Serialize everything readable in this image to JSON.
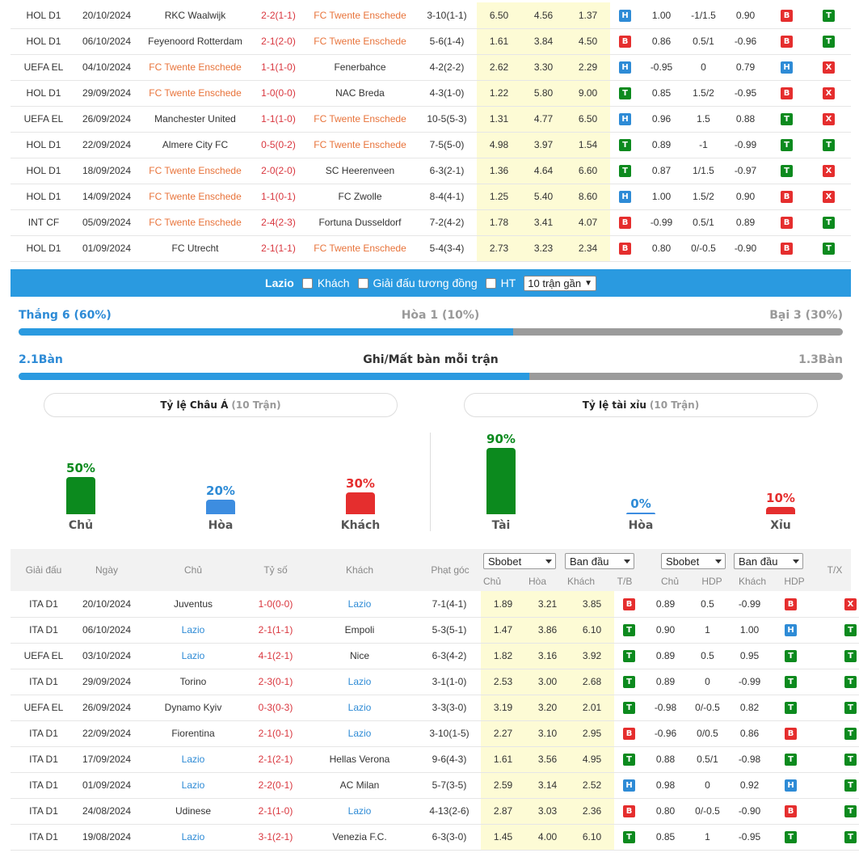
{
  "top_table": [
    {
      "league": "HOL D1",
      "date": "20/10/2024",
      "home": "RKC Waalwijk",
      "home_hl": false,
      "score": "2-2(1-1)",
      "away": "FC Twente Enschede",
      "away_hl": true,
      "corner": "3-10(1-1)",
      "o1": "6.50",
      "o2": "4.56",
      "o3": "1.37",
      "r1": "H",
      "h1": "1.00",
      "h2": "-1/1.5",
      "h3": "0.90",
      "r2": "B",
      "r3": "T"
    },
    {
      "league": "HOL D1",
      "date": "06/10/2024",
      "home": "Feyenoord Rotterdam",
      "home_hl": false,
      "score": "2-1(2-0)",
      "away": "FC Twente Enschede",
      "away_hl": true,
      "corner": "5-6(1-4)",
      "o1": "1.61",
      "o2": "3.84",
      "o3": "4.50",
      "r1": "B",
      "h1": "0.86",
      "h2": "0.5/1",
      "h3": "-0.96",
      "r2": "B",
      "r3": "T"
    },
    {
      "league": "UEFA EL",
      "date": "04/10/2024",
      "home": "FC Twente Enschede",
      "home_hl": true,
      "score": "1-1(1-0)",
      "away": "Fenerbahce",
      "away_hl": false,
      "corner": "4-2(2-2)",
      "o1": "2.62",
      "o2": "3.30",
      "o3": "2.29",
      "r1": "H",
      "h1": "-0.95",
      "h2": "0",
      "h3": "0.79",
      "r2": "H",
      "r3": "X"
    },
    {
      "league": "HOL D1",
      "date": "29/09/2024",
      "home": "FC Twente Enschede",
      "home_hl": true,
      "score": "1-0(0-0)",
      "away": "NAC Breda",
      "away_hl": false,
      "corner": "4-3(1-0)",
      "o1": "1.22",
      "o2": "5.80",
      "o3": "9.00",
      "r1": "T",
      "h1": "0.85",
      "h2": "1.5/2",
      "h3": "-0.95",
      "r2": "B",
      "r3": "X"
    },
    {
      "league": "UEFA EL",
      "date": "26/09/2024",
      "home": "Manchester United",
      "home_hl": false,
      "score": "1-1(1-0)",
      "away": "FC Twente Enschede",
      "away_hl": true,
      "corner": "10-5(5-3)",
      "o1": "1.31",
      "o2": "4.77",
      "o3": "6.50",
      "r1": "H",
      "h1": "0.96",
      "h2": "1.5",
      "h3": "0.88",
      "r2": "T",
      "r3": "X"
    },
    {
      "league": "HOL D1",
      "date": "22/09/2024",
      "home": "Almere City FC",
      "home_hl": false,
      "score": "0-5(0-2)",
      "away": "FC Twente Enschede",
      "away_hl": true,
      "corner": "7-5(5-0)",
      "o1": "4.98",
      "o2": "3.97",
      "o3": "1.54",
      "r1": "T",
      "h1": "0.89",
      "h2": "-1",
      "h3": "-0.99",
      "r2": "T",
      "r3": "T"
    },
    {
      "league": "HOL D1",
      "date": "18/09/2024",
      "home": "FC Twente Enschede",
      "home_hl": true,
      "score": "2-0(2-0)",
      "away": "SC Heerenveen",
      "away_hl": false,
      "corner": "6-3(2-1)",
      "o1": "1.36",
      "o2": "4.64",
      "o3": "6.60",
      "r1": "T",
      "h1": "0.87",
      "h2": "1/1.5",
      "h3": "-0.97",
      "r2": "T",
      "r3": "X"
    },
    {
      "league": "HOL D1",
      "date": "14/09/2024",
      "home": "FC Twente Enschede",
      "home_hl": true,
      "score": "1-1(0-1)",
      "away": "FC Zwolle",
      "away_hl": false,
      "corner": "8-4(4-1)",
      "o1": "1.25",
      "o2": "5.40",
      "o3": "8.60",
      "r1": "H",
      "h1": "1.00",
      "h2": "1.5/2",
      "h3": "0.90",
      "r2": "B",
      "r3": "X"
    },
    {
      "league": "INT CF",
      "date": "05/09/2024",
      "home": "FC Twente Enschede",
      "home_hl": true,
      "score": "2-4(2-3)",
      "away": "Fortuna Dusseldorf",
      "away_hl": false,
      "corner": "7-2(4-2)",
      "o1": "1.78",
      "o2": "3.41",
      "o3": "4.07",
      "r1": "B",
      "h1": "-0.99",
      "h2": "0.5/1",
      "h3": "0.89",
      "r2": "B",
      "r3": "T"
    },
    {
      "league": "HOL D1",
      "date": "01/09/2024",
      "home": "FC Utrecht",
      "home_hl": false,
      "score": "2-1(1-1)",
      "away": "FC Twente Enschede",
      "away_hl": true,
      "corner": "5-4(3-4)",
      "o1": "2.73",
      "o2": "3.23",
      "o3": "2.34",
      "r1": "B",
      "h1": "0.80",
      "h2": "0/-0.5",
      "h3": "-0.90",
      "r2": "B",
      "r3": "T"
    }
  ],
  "filter_bar": {
    "team": "Lazio",
    "away_label": "Khách",
    "same_league_label": "Giải đấu tương đồng",
    "ht_label": "HT",
    "select_value": "10 trận gần"
  },
  "record": {
    "win": "Thắng 6 (60%)",
    "draw": "Hòa 1 (10%)",
    "loss": "Bại 3 (30%)",
    "win_fraction": 0.6
  },
  "goals": {
    "scored": "2.1Bàn",
    "title": "Ghi/Mất bàn mỗi trận",
    "conceded": "1.3Bàn",
    "scored_fraction": 0.62
  },
  "asian": {
    "title": "Tỷ lệ Châu Á",
    "sub": "(10 Trận)",
    "items": [
      {
        "pct": "50%",
        "label": "Chủ",
        "value": 50
      },
      {
        "pct": "20%",
        "label": "Hòa",
        "value": 20
      },
      {
        "pct": "30%",
        "label": "Khách",
        "value": 30
      }
    ]
  },
  "overunder": {
    "title": "Tỷ lệ tài xỉu",
    "sub": "(10 Trận)",
    "items": [
      {
        "pct": "90%",
        "label": "Tài",
        "value": 90
      },
      {
        "pct": "0%",
        "label": "Hòa",
        "value": 0
      },
      {
        "pct": "10%",
        "label": "Xỉu",
        "value": 10
      }
    ]
  },
  "bottom_header": {
    "league": "Giải đấu",
    "date": "Ngày",
    "home": "Chủ",
    "score": "Tỷ số",
    "away": "Khách",
    "corner": "Phạt góc",
    "book1": "Sbobet",
    "type1": "Ban đầu",
    "book2": "Sbobet",
    "type2": "Ban đầu",
    "c_home": "Chủ",
    "c_draw": "Hòa",
    "c_away": "Khách",
    "c_tb": "T/B",
    "c_home2": "Chủ",
    "c_hdp": "HDP",
    "c_away2": "Khách",
    "c_hdp2": "HDP",
    "c_tx": "T/X"
  },
  "bottom_table": [
    {
      "league": "ITA D1",
      "date": "20/10/2024",
      "home": "Juventus",
      "home_hl": false,
      "score": "1-0(0-0)",
      "away": "Lazio",
      "away_hl": true,
      "corner": "7-1(4-1)",
      "o1": "1.89",
      "o2": "3.21",
      "o3": "3.85",
      "r1": "B",
      "h1": "0.89",
      "h2": "0.5",
      "h3": "-0.99",
      "r2": "B",
      "r3": "X"
    },
    {
      "league": "ITA D1",
      "date": "06/10/2024",
      "home": "Lazio",
      "home_hl": true,
      "score": "2-1(1-1)",
      "away": "Empoli",
      "away_hl": false,
      "corner": "5-3(5-1)",
      "o1": "1.47",
      "o2": "3.86",
      "o3": "6.10",
      "r1": "T",
      "h1": "0.90",
      "h2": "1",
      "h3": "1.00",
      "r2": "H",
      "r3": "T"
    },
    {
      "league": "UEFA EL",
      "date": "03/10/2024",
      "home": "Lazio",
      "home_hl": true,
      "score": "4-1(2-1)",
      "away": "Nice",
      "away_hl": false,
      "corner": "6-3(4-2)",
      "o1": "1.82",
      "o2": "3.16",
      "o3": "3.92",
      "r1": "T",
      "h1": "0.89",
      "h2": "0.5",
      "h3": "0.95",
      "r2": "T",
      "r3": "T"
    },
    {
      "league": "ITA D1",
      "date": "29/09/2024",
      "home": "Torino",
      "home_hl": false,
      "score": "2-3(0-1)",
      "away": "Lazio",
      "away_hl": true,
      "corner": "3-1(1-0)",
      "o1": "2.53",
      "o2": "3.00",
      "o3": "2.68",
      "r1": "T",
      "h1": "0.89",
      "h2": "0",
      "h3": "-0.99",
      "r2": "T",
      "r3": "T"
    },
    {
      "league": "UEFA EL",
      "date": "26/09/2024",
      "home": "Dynamo Kyiv",
      "home_hl": false,
      "score": "0-3(0-3)",
      "away": "Lazio",
      "away_hl": true,
      "corner": "3-3(3-0)",
      "o1": "3.19",
      "o2": "3.20",
      "o3": "2.01",
      "r1": "T",
      "h1": "-0.98",
      "h2": "0/-0.5",
      "h3": "0.82",
      "r2": "T",
      "r3": "T"
    },
    {
      "league": "ITA D1",
      "date": "22/09/2024",
      "home": "Fiorentina",
      "home_hl": false,
      "score": "2-1(0-1)",
      "away": "Lazio",
      "away_hl": true,
      "corner": "3-10(1-5)",
      "o1": "2.27",
      "o2": "3.10",
      "o3": "2.95",
      "r1": "B",
      "h1": "-0.96",
      "h2": "0/0.5",
      "h3": "0.86",
      "r2": "B",
      "r3": "T"
    },
    {
      "league": "ITA D1",
      "date": "17/09/2024",
      "home": "Lazio",
      "home_hl": true,
      "score": "2-1(2-1)",
      "away": "Hellas Verona",
      "away_hl": false,
      "corner": "9-6(4-3)",
      "o1": "1.61",
      "o2": "3.56",
      "o3": "4.95",
      "r1": "T",
      "h1": "0.88",
      "h2": "0.5/1",
      "h3": "-0.98",
      "r2": "T",
      "r3": "T"
    },
    {
      "league": "ITA D1",
      "date": "01/09/2024",
      "home": "Lazio",
      "home_hl": true,
      "score": "2-2(0-1)",
      "away": "AC Milan",
      "away_hl": false,
      "corner": "5-7(3-5)",
      "o1": "2.59",
      "o2": "3.14",
      "o3": "2.52",
      "r1": "H",
      "h1": "0.98",
      "h2": "0",
      "h3": "0.92",
      "r2": "H",
      "r3": "T"
    },
    {
      "league": "ITA D1",
      "date": "24/08/2024",
      "home": "Udinese",
      "home_hl": false,
      "score": "2-1(1-0)",
      "away": "Lazio",
      "away_hl": true,
      "corner": "4-13(2-6)",
      "o1": "2.87",
      "o2": "3.03",
      "o3": "2.36",
      "r1": "B",
      "h1": "0.80",
      "h2": "0/-0.5",
      "h3": "-0.90",
      "r2": "B",
      "r3": "T"
    },
    {
      "league": "ITA D1",
      "date": "19/08/2024",
      "home": "Lazio",
      "home_hl": true,
      "score": "3-1(2-1)",
      "away": "Venezia F.C.",
      "away_hl": false,
      "corner": "6-3(3-0)",
      "o1": "1.45",
      "o2": "4.00",
      "o3": "6.10",
      "r1": "T",
      "h1": "0.85",
      "h2": "1",
      "h3": "-0.95",
      "r2": "T",
      "r3": "T"
    }
  ]
}
